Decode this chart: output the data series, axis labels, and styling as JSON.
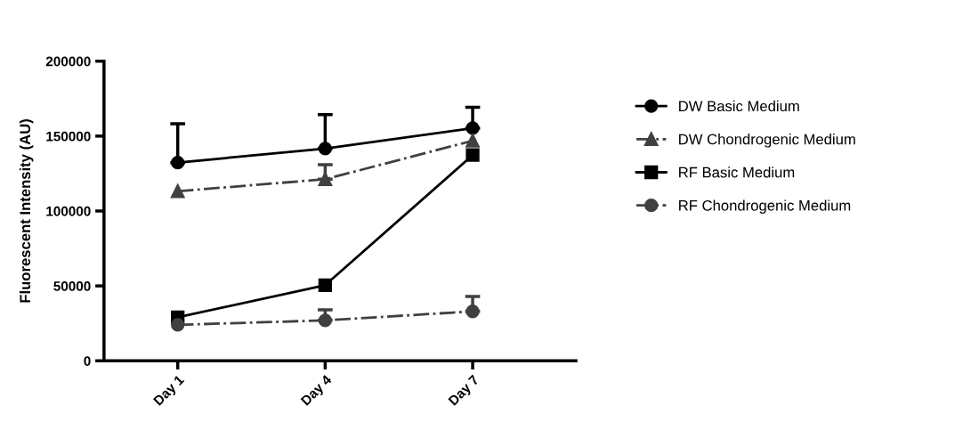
{
  "chart_data": {
    "type": "line",
    "ylabel": "Fluorescent Intensity (AU)",
    "categories": [
      "Day 1",
      "Day 4",
      "Day 7"
    ],
    "ylim": [
      0,
      200000
    ],
    "yticks": [
      0,
      50000,
      100000,
      150000,
      200000
    ],
    "grid": false,
    "legend": "right",
    "series": [
      {
        "name": "DW Basic Medium",
        "color": "#000000",
        "marker": "circle",
        "line_style": "solid",
        "values": [
          132300,
          141700,
          155300
        ],
        "errors": [
          [
            132300,
            158300
          ],
          [
            141700,
            164300
          ],
          [
            155300,
            169300
          ]
        ]
      },
      {
        "name": "DW Chondrogenic Medium",
        "color": "#404040",
        "marker": "triangle",
        "line_style": "dashdot",
        "values": [
          113200,
          121200,
          146900
        ],
        "errors": [
          null,
          [
            121200,
            130900
          ],
          null
        ]
      },
      {
        "name": "RF Basic Medium",
        "color": "#000000",
        "marker": "square",
        "line_style": "solid",
        "values": [
          29000,
          50500,
          137300
        ]
      },
      {
        "name": "RF Chondrogenic Medium",
        "color": "#404040",
        "marker": "circle",
        "line_style": "dashdot",
        "values": [
          24000,
          27000,
          33000
        ],
        "errors": [
          null,
          [
            27000,
            34000
          ],
          [
            33000,
            43000
          ]
        ]
      }
    ]
  }
}
